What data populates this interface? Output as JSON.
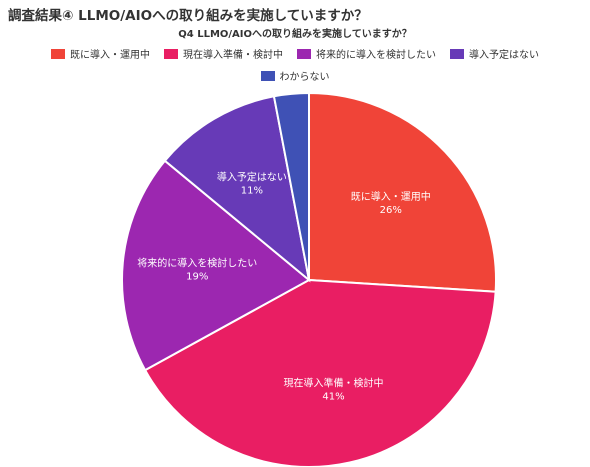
{
  "page_title": "調査結果④ LLMO/AIOへの取り組みを実施していますか？",
  "chart_data": {
    "type": "pie",
    "title": "Q4 LLMO/AIOへの取り組みを実施していますか？",
    "legend_position": "top",
    "slices": [
      {
        "label": "既に導入・運用中",
        "value": 26,
        "value_label": "26%",
        "color": "#f04438"
      },
      {
        "label": "現在導入準備・検討中",
        "value": 41,
        "value_label": "41%",
        "color": "#e91e63"
      },
      {
        "label": "将来的に導入を検討したい",
        "value": 19,
        "value_label": "19%",
        "color": "#9c27b0"
      },
      {
        "label": "導入予定はない",
        "value": 11,
        "value_label": "11%",
        "color": "#673ab7"
      },
      {
        "label": "わからない",
        "value": 3,
        "value_label": "",
        "color": "#3f51b5"
      }
    ]
  }
}
